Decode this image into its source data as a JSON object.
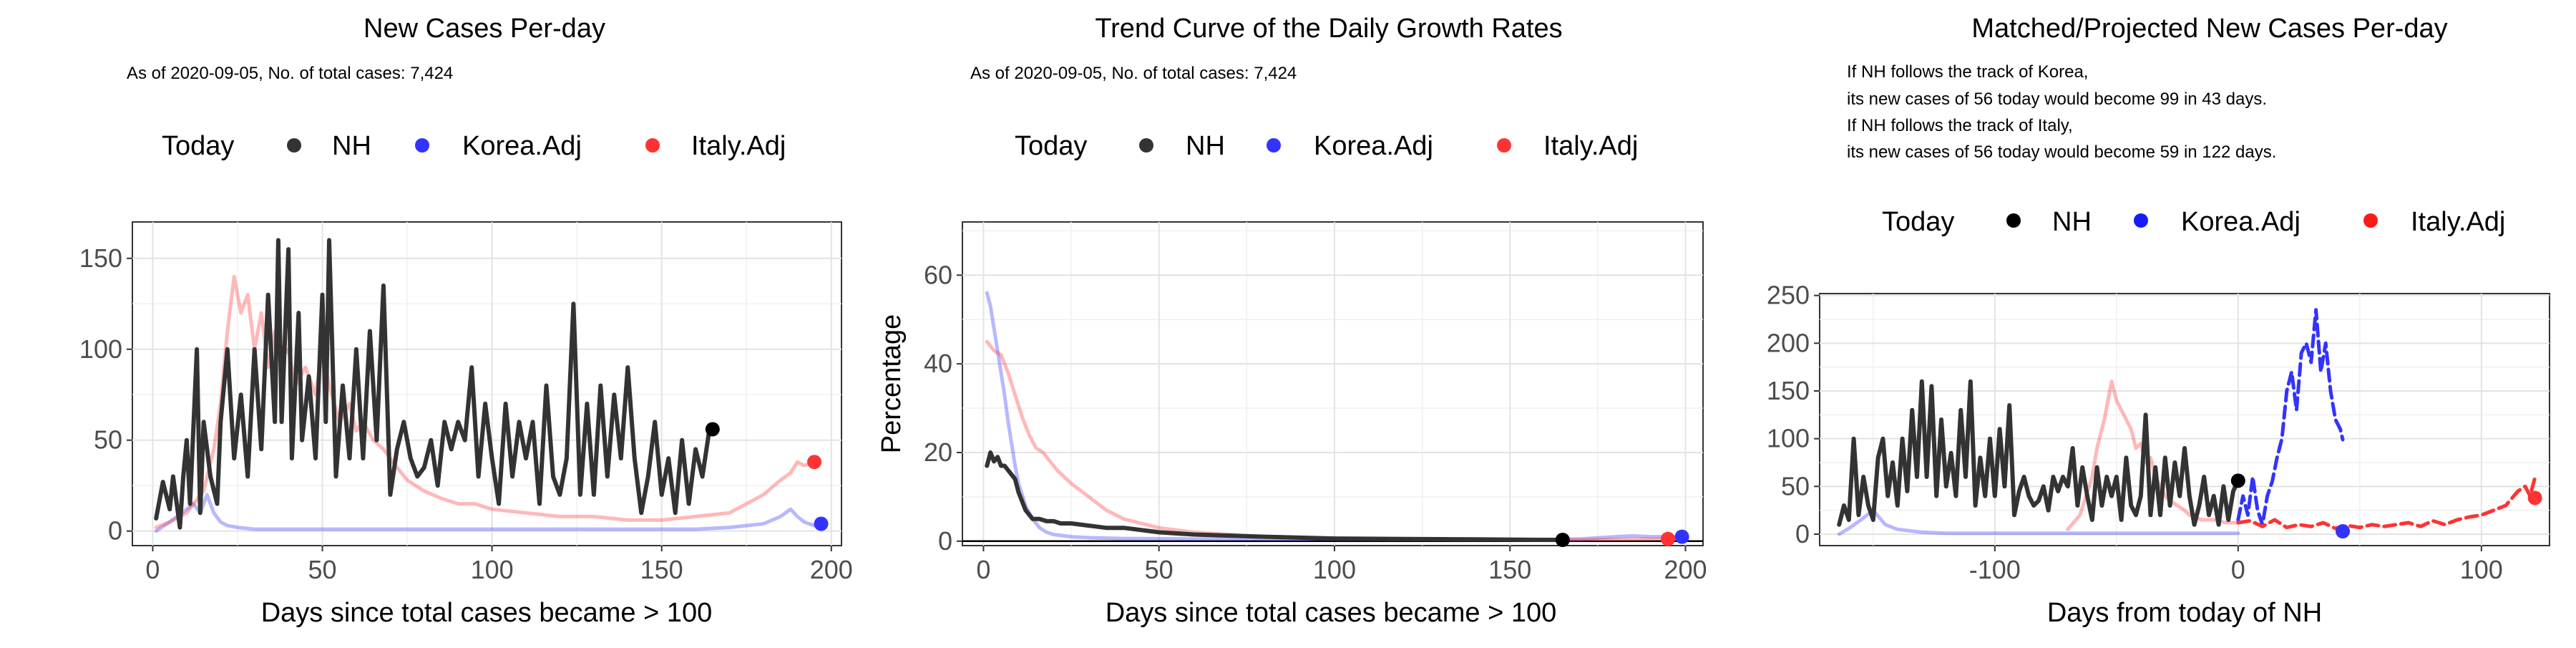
{
  "colors": {
    "nh": "#333333",
    "korea": "#3333ff",
    "italy": "#ff3333",
    "today": "#000000"
  },
  "panels": [
    {
      "title": "New Cases Per-day",
      "notes": [
        "As of 2020-09-05, No. of total cases: 7,424"
      ],
      "legend": [
        "Today",
        "NH",
        "Korea.Adj",
        "Italy.Adj"
      ],
      "xlabel": "Days since total cases became > 100",
      "ylabel": ""
    },
    {
      "title": "Trend Curve of the Daily Growth Rates",
      "notes": [
        "As of 2020-09-05, No. of total cases: 7,424"
      ],
      "legend": [
        "Today",
        "NH",
        "Korea.Adj",
        "Italy.Adj"
      ],
      "xlabel": "Days since total cases became > 100",
      "ylabel": "Percentage"
    },
    {
      "title": "Matched/Projected New Cases Per-day",
      "notes": [
        "If NH follows the track of Korea,",
        "its new cases of 56 today would become 99 in 43 days.",
        "If NH follows the track of Italy,",
        "its new cases of 56 today would become 59 in 122 days."
      ],
      "legend": [
        "Today",
        "NH",
        "Korea.Adj",
        "Italy.Adj"
      ],
      "xlabel": "Days from today of NH",
      "ylabel": ""
    }
  ],
  "chart_data": [
    {
      "type": "line",
      "title": "New Cases Per-day",
      "xlabel": "Days since total cases became > 100",
      "ylabel": "",
      "xlim": [
        -6,
        203
      ],
      "ylim": [
        -8,
        170
      ],
      "xticks": [
        0,
        50,
        100,
        150,
        200
      ],
      "yticks": [
        0,
        50,
        100,
        150
      ],
      "grid": true,
      "legend_position": "top",
      "series": [
        {
          "name": "NH",
          "color": "#333333",
          "x": [
            1,
            3,
            5,
            6,
            8,
            9,
            10,
            11,
            13,
            14,
            15,
            17,
            19,
            20,
            22,
            24,
            26,
            28,
            30,
            32,
            34,
            36,
            37,
            38,
            40,
            41,
            43,
            44,
            46,
            48,
            50,
            51,
            52,
            54,
            56,
            58,
            60,
            62,
            64,
            66,
            68,
            70,
            72,
            74,
            76,
            78,
            80,
            82,
            84,
            86,
            88,
            90,
            92,
            94,
            96,
            98,
            100,
            102,
            104,
            106,
            108,
            110,
            112,
            114,
            116,
            118,
            120,
            122,
            124,
            126,
            128,
            130,
            132,
            134,
            136,
            138,
            140,
            142,
            144,
            146,
            148,
            150,
            152,
            154,
            156,
            158,
            160,
            162,
            164,
            165
          ],
          "y": [
            7,
            27,
            12,
            30,
            2,
            30,
            50,
            15,
            100,
            10,
            60,
            30,
            15,
            60,
            100,
            40,
            75,
            30,
            100,
            45,
            130,
            60,
            160,
            60,
            155,
            40,
            120,
            50,
            85,
            40,
            130,
            60,
            160,
            30,
            80,
            40,
            100,
            40,
            110,
            50,
            135,
            20,
            45,
            60,
            40,
            30,
            35,
            50,
            25,
            60,
            45,
            60,
            50,
            90,
            30,
            70,
            40,
            15,
            70,
            30,
            60,
            40,
            60,
            15,
            80,
            30,
            20,
            40,
            125,
            20,
            70,
            20,
            80,
            30,
            75,
            40,
            90,
            40,
            10,
            30,
            60,
            20,
            40,
            10,
            50,
            15,
            45,
            30,
            55,
            56
          ]
        },
        {
          "name": "Korea.Adj",
          "color": "#3333ff",
          "x": [
            1,
            5,
            10,
            12,
            14,
            16,
            18,
            20,
            22,
            25,
            30,
            40,
            50,
            60,
            70,
            80,
            90,
            100,
            110,
            120,
            130,
            140,
            150,
            160,
            170,
            180,
            185,
            188,
            190,
            192,
            195,
            197
          ],
          "y": [
            0,
            5,
            12,
            15,
            10,
            20,
            10,
            5,
            3,
            2,
            1,
            1,
            1,
            1,
            1,
            1,
            1,
            1,
            1,
            1,
            1,
            1,
            1,
            1,
            2,
            4,
            8,
            12,
            8,
            5,
            3,
            4
          ]
        },
        {
          "name": "Italy.Adj",
          "color": "#ff3333",
          "x": [
            1,
            5,
            10,
            15,
            18,
            20,
            22,
            24,
            26,
            28,
            30,
            32,
            34,
            36,
            38,
            40,
            42,
            45,
            48,
            50,
            52,
            55,
            58,
            60,
            62,
            65,
            68,
            70,
            72,
            75,
            80,
            85,
            90,
            95,
            100,
            110,
            120,
            130,
            140,
            150,
            160,
            170,
            175,
            180,
            185,
            188,
            190,
            192,
            195
          ],
          "y": [
            2,
            5,
            10,
            22,
            45,
            70,
            110,
            140,
            120,
            130,
            100,
            120,
            90,
            110,
            95,
            100,
            80,
            90,
            75,
            100,
            80,
            60,
            70,
            55,
            60,
            50,
            45,
            40,
            35,
            28,
            22,
            18,
            15,
            15,
            12,
            10,
            8,
            8,
            6,
            6,
            8,
            10,
            15,
            20,
            28,
            32,
            38,
            36,
            38
          ]
        }
      ],
      "today_points": [
        {
          "series": "NH",
          "x": 165,
          "y": 56,
          "color": "#000000"
        },
        {
          "series": "Korea.Adj",
          "x": 197,
          "y": 4,
          "color": "#3333ff"
        },
        {
          "series": "Italy.Adj",
          "x": 195,
          "y": 38,
          "color": "#ff3333"
        }
      ]
    },
    {
      "type": "line",
      "title": "Trend Curve of the Daily Growth Rates",
      "xlabel": "Days since total cases became > 100",
      "ylabel": "Percentage",
      "xlim": [
        -6,
        205
      ],
      "ylim": [
        -1,
        72
      ],
      "xticks": [
        0,
        50,
        100,
        150,
        200
      ],
      "yticks": [
        0,
        20,
        40,
        60
      ],
      "grid": true,
      "legend_position": "top",
      "hline_y": 0,
      "series": [
        {
          "name": "NH",
          "color": "#333333",
          "x": [
            1,
            2,
            3,
            4,
            5,
            6,
            7,
            8,
            9,
            10,
            11,
            12,
            13,
            14,
            16,
            18,
            20,
            22,
            25,
            30,
            35,
            40,
            50,
            60,
            80,
            100,
            120,
            140,
            160,
            165
          ],
          "y": [
            17,
            20,
            18,
            19,
            17,
            17,
            16,
            15,
            14,
            11,
            9,
            7,
            6,
            5,
            5,
            4.5,
            4.5,
            4,
            4,
            3.5,
            3,
            3,
            2,
            1.5,
            1,
            0.6,
            0.5,
            0.4,
            0.3,
            0.3
          ]
        },
        {
          "name": "Korea.Adj",
          "color": "#3333ff",
          "x": [
            1,
            2,
            3,
            4,
            5,
            6,
            7,
            8,
            9,
            10,
            12,
            14,
            16,
            18,
            20,
            25,
            30,
            40,
            60,
            100,
            150,
            170,
            180,
            185,
            190,
            195,
            199
          ],
          "y": [
            56,
            53,
            48,
            43,
            38,
            33,
            27,
            22,
            17,
            13,
            8,
            5,
            3,
            2,
            1.5,
            1,
            0.8,
            0.6,
            0.5,
            0.4,
            0.3,
            0.5,
            1,
            1.2,
            1,
            1,
            1
          ]
        },
        {
          "name": "Italy.Adj",
          "color": "#ff3333",
          "x": [
            1,
            3,
            5,
            7,
            9,
            11,
            13,
            15,
            17,
            19,
            21,
            25,
            30,
            35,
            40,
            45,
            50,
            60,
            70,
            80,
            100,
            120,
            150,
            170,
            180,
            190,
            195
          ],
          "y": [
            45,
            43,
            42,
            38,
            33,
            28,
            24,
            21,
            20,
            18,
            16,
            13,
            10,
            7,
            5,
            4,
            3,
            2,
            1.5,
            1,
            0.5,
            0.4,
            0.3,
            0.3,
            0.4,
            0.5,
            0.5
          ]
        }
      ],
      "today_points": [
        {
          "series": "NH",
          "x": 165,
          "y": 0.3,
          "color": "#000000"
        },
        {
          "series": "Korea.Adj",
          "x": 199,
          "y": 1,
          "color": "#3333ff"
        },
        {
          "series": "Italy.Adj",
          "x": 195,
          "y": 0.5,
          "color": "#ff3333"
        }
      ]
    },
    {
      "type": "line",
      "title": "Matched/Projected New Cases Per-day",
      "xlabel": "Days from today of NH",
      "ylabel": "",
      "xlim": [
        -172,
        128
      ],
      "ylim": [
        -12,
        252
      ],
      "xticks": [
        -100,
        0,
        100
      ],
      "yticks": [
        0,
        50,
        100,
        150,
        200,
        250
      ],
      "grid": true,
      "legend_position": "top",
      "series": [
        {
          "name": "NH",
          "color": "#333333",
          "x": [
            -164,
            -162,
            -160,
            -158,
            -156,
            -154,
            -152,
            -150,
            -148,
            -146,
            -144,
            -142,
            -140,
            -138,
            -136,
            -134,
            -132,
            -130,
            -128,
            -126,
            -124,
            -122,
            -120,
            -118,
            -116,
            -114,
            -112,
            -110,
            -108,
            -106,
            -104,
            -102,
            -100,
            -98,
            -96,
            -94,
            -92,
            -90,
            -88,
            -86,
            -84,
            -82,
            -80,
            -78,
            -76,
            -74,
            -72,
            -70,
            -68,
            -66,
            -64,
            -62,
            -60,
            -58,
            -56,
            -54,
            -52,
            -50,
            -48,
            -46,
            -44,
            -42,
            -40,
            -38,
            -36,
            -34,
            -32,
            -30,
            -28,
            -26,
            -24,
            -22,
            -20,
            -18,
            -16,
            -14,
            -12,
            -10,
            -8,
            -6,
            -4,
            -2,
            0
          ],
          "y": [
            10,
            30,
            15,
            100,
            20,
            60,
            30,
            15,
            80,
            100,
            40,
            75,
            30,
            100,
            45,
            130,
            60,
            160,
            60,
            155,
            40,
            120,
            50,
            85,
            40,
            130,
            60,
            160,
            30,
            80,
            40,
            100,
            40,
            110,
            50,
            135,
            20,
            45,
            60,
            40,
            30,
            35,
            50,
            25,
            60,
            45,
            60,
            50,
            90,
            30,
            70,
            40,
            15,
            70,
            30,
            60,
            40,
            60,
            15,
            80,
            30,
            20,
            40,
            125,
            20,
            70,
            20,
            80,
            30,
            75,
            40,
            90,
            40,
            10,
            30,
            60,
            20,
            40,
            10,
            50,
            15,
            45,
            56
          ]
        },
        {
          "name": "Korea.Adj (matched)",
          "color": "#3333ff",
          "opacity": 0.35,
          "x": [
            -164,
            -160,
            -155,
            -150,
            -145,
            -140,
            -130,
            -120,
            -100,
            -80,
            -60,
            -40,
            -20,
            0
          ],
          "y": [
            0,
            6,
            15,
            25,
            10,
            5,
            2,
            1,
            1,
            1,
            1,
            1,
            1,
            1
          ]
        },
        {
          "name": "Korea.Adj (projected)",
          "color": "#3333ff",
          "dashed": true,
          "x": [
            0,
            2,
            4,
            6,
            8,
            10,
            12,
            14,
            16,
            18,
            20,
            22,
            24,
            26,
            28,
            30,
            32,
            34,
            36,
            38,
            40,
            42,
            43
          ],
          "y": [
            15,
            40,
            20,
            60,
            25,
            10,
            40,
            55,
            80,
            100,
            150,
            170,
            130,
            190,
            200,
            180,
            235,
            170,
            200,
            150,
            120,
            110,
            99
          ]
        },
        {
          "name": "Italy.Adj (matched)",
          "color": "#ff3333",
          "opacity": 0.35,
          "x": [
            -70,
            -65,
            -60,
            -58,
            -55,
            -52,
            -50,
            -48,
            -46,
            -44,
            -42,
            -40,
            -38,
            -36,
            -34,
            -32,
            -30,
            -28,
            -25,
            -22,
            -20,
            -15,
            -10,
            -5,
            0
          ],
          "y": [
            5,
            20,
            60,
            90,
            120,
            160,
            140,
            130,
            120,
            110,
            90,
            95,
            75,
            80,
            60,
            50,
            40,
            35,
            30,
            25,
            20,
            15,
            15,
            12,
            12
          ]
        },
        {
          "name": "Italy.Adj (projected)",
          "color": "#ff3333",
          "dashed": true,
          "x": [
            0,
            5,
            10,
            15,
            20,
            25,
            30,
            35,
            40,
            45,
            50,
            55,
            60,
            65,
            70,
            75,
            80,
            85,
            90,
            95,
            100,
            105,
            110,
            115,
            118,
            120,
            122
          ],
          "y": [
            12,
            14,
            8,
            15,
            7,
            10,
            8,
            12,
            6,
            9,
            7,
            10,
            8,
            10,
            12,
            8,
            14,
            10,
            15,
            18,
            20,
            25,
            30,
            45,
            50,
            40,
            59
          ]
        }
      ],
      "today_points": [
        {
          "series": "NH",
          "x": 0,
          "y": 56,
          "color": "#000000"
        },
        {
          "series": "Korea.Adj",
          "x": 43,
          "y": 3,
          "color": "#3333ff"
        },
        {
          "series": "Italy.Adj",
          "x": 122,
          "y": 38,
          "color": "#ff3333"
        }
      ]
    }
  ]
}
